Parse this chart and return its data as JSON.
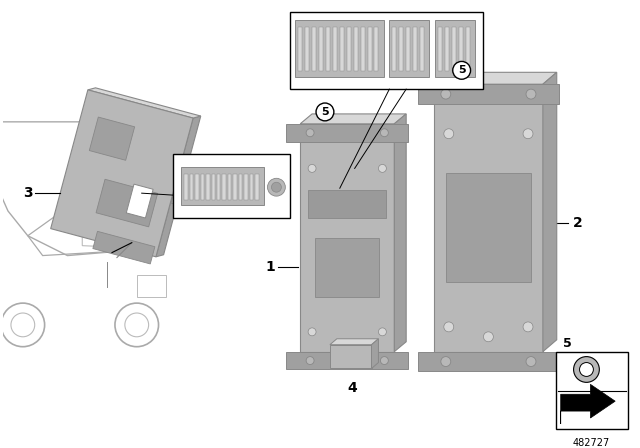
{
  "bg_color": "#ffffff",
  "part_number": "482727",
  "gray_lightest": "#d8d8d8",
  "gray_light": "#c8c8c8",
  "gray_mid": "#b8b8b8",
  "gray_dark": "#a0a0a0",
  "gray_darker": "#888888",
  "gray_darkest": "#707070",
  "edge_color": "#888888",
  "black": "#000000",
  "white": "#ffffff"
}
